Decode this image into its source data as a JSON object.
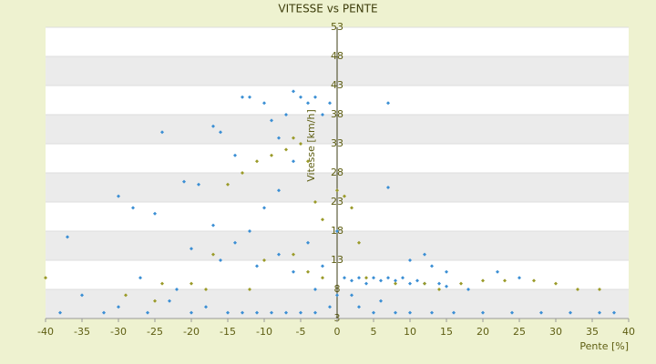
{
  "chart_data": {
    "type": "scatter",
    "title": "VITESSE vs PENTE",
    "x_label": "Pente [%]",
    "y_label": "Vitesse [km/h]",
    "xlim": [
      -40,
      40
    ],
    "xticks": [
      -40,
      -35,
      -30,
      -25,
      -20,
      -15,
      -10,
      -5,
      0,
      5,
      10,
      15,
      20,
      25,
      30,
      35,
      40
    ],
    "ylim": [
      3,
      53
    ],
    "yticks": [
      3,
      8,
      13,
      18,
      23,
      28,
      33,
      38,
      43,
      48,
      53
    ],
    "grid": true,
    "series": [
      {
        "color": "#3a8ed4",
        "x": [
          -37,
          -35,
          -30,
          -28,
          -25,
          -24,
          -21,
          -20,
          -19,
          -17,
          -17,
          -16,
          -14,
          -13,
          -12,
          -10,
          -9,
          -8,
          -7,
          -6,
          -5,
          -4,
          -3,
          -2,
          -1,
          -6,
          -8,
          -10,
          -12,
          -14,
          -4,
          -2,
          0,
          7,
          7,
          10,
          12,
          13,
          15,
          22,
          25,
          -27,
          -22,
          -18,
          -15,
          -13,
          -11,
          -9,
          -7,
          -5,
          -3,
          -1,
          1,
          2,
          3,
          4,
          5,
          6,
          7,
          8,
          9,
          10,
          11,
          12,
          14,
          3,
          5,
          8,
          10,
          13,
          16,
          20,
          24,
          28,
          32,
          36,
          38,
          -38,
          -32,
          -26,
          -20,
          -30,
          -23,
          -16,
          -11,
          -8,
          -6,
          -3,
          0,
          18,
          15,
          6,
          2
        ],
        "values": [
          17,
          7,
          24,
          22,
          21,
          35,
          26.5,
          15,
          26,
          19,
          36,
          35,
          31,
          41,
          41,
          40,
          37,
          34,
          38,
          42,
          41,
          40,
          41,
          38,
          40,
          30,
          25,
          22,
          18,
          16,
          16,
          12,
          18,
          40,
          25.5,
          13,
          14,
          12,
          11,
          11,
          10,
          10,
          8,
          5,
          4,
          4,
          4,
          4,
          4,
          4,
          4,
          5,
          10,
          9.5,
          10,
          9,
          10,
          9.5,
          10,
          9.5,
          10,
          9,
          9.5,
          9,
          9,
          5,
          4,
          4,
          4,
          4,
          4,
          4,
          4,
          4,
          4,
          4,
          4,
          4,
          4,
          4,
          4,
          5,
          6,
          13,
          12,
          14,
          11,
          8,
          7,
          8,
          8.5,
          6,
          7
        ]
      },
      {
        "color": "#9a9a28",
        "x": [
          -40,
          -29,
          -24,
          -20,
          -17,
          -15,
          -13,
          -11,
          -9,
          -7,
          -6,
          -5,
          -4,
          -3,
          -2,
          0,
          1,
          2,
          3,
          -10,
          -6,
          -4,
          -2,
          4,
          8,
          12,
          17,
          20,
          23,
          27,
          30,
          33,
          36,
          14,
          -12,
          -18,
          -25
        ],
        "values": [
          10,
          7,
          9,
          9,
          14,
          26,
          28,
          30,
          31,
          32,
          34,
          33,
          30,
          23,
          20,
          25,
          24,
          22,
          16,
          13,
          14,
          11,
          10,
          10,
          9,
          9,
          9,
          9.5,
          9.5,
          9.5,
          9,
          8,
          8,
          8,
          8,
          8,
          6
        ]
      }
    ]
  }
}
